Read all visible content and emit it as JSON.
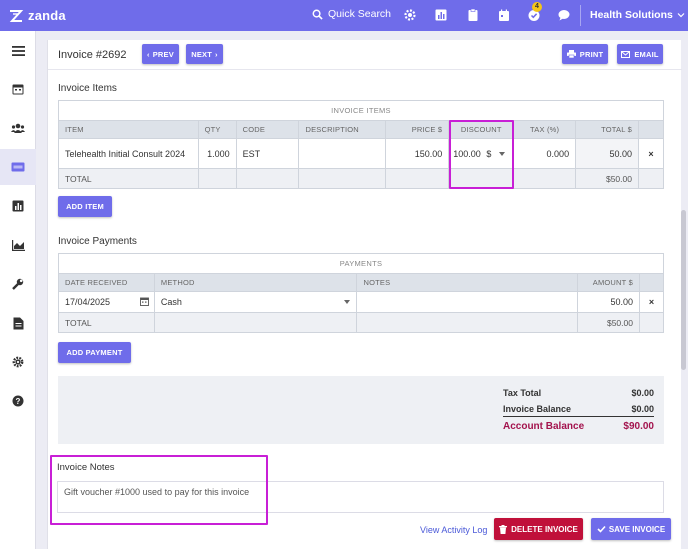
{
  "topbar": {
    "logo_text": "zanda",
    "search_label": "Quick Search",
    "notification_count": "4",
    "organization": "Health Solutions",
    "icons": [
      "gear-icon",
      "chart-icon",
      "clipboard-icon",
      "calendar-icon",
      "check-badge-icon",
      "chat-icon"
    ]
  },
  "sidebar": {
    "icons": [
      "menu-icon",
      "calendar-icon",
      "users-icon",
      "invoice-icon",
      "report-icon",
      "analytics-icon",
      "wrench-icon",
      "document-icon",
      "settings-icon",
      "help-icon"
    ],
    "active": "invoice-icon"
  },
  "header": {
    "title": "Invoice #2692",
    "prev_label": "PREV",
    "next_label": "NEXT",
    "print_label": "PRINT",
    "email_label": "EMAIL"
  },
  "items": {
    "section_title": "Invoice Items",
    "caption": "INVOICE ITEMS",
    "columns": [
      "ITEM",
      "QTY",
      "CODE",
      "DESCRIPTION",
      "PRICE $",
      "DISCOUNT",
      "TAX (%)",
      "TOTAL $"
    ],
    "rows": [
      {
        "item": "Telehealth Initial Consult 2024",
        "qty": "1.000",
        "code": "EST",
        "description": "",
        "price": "150.00",
        "discount": "100.00",
        "discount_unit": "$",
        "tax": "0.000",
        "total": "50.00"
      }
    ],
    "total_label": "TOTAL",
    "total_value": "$50.00",
    "add_label": "ADD ITEM"
  },
  "payments": {
    "section_title": "Invoice Payments",
    "caption": "PAYMENTS",
    "columns": [
      "DATE RECEIVED",
      "METHOD",
      "NOTES",
      "AMOUNT $"
    ],
    "rows": [
      {
        "date": "17/04/2025",
        "method": "Cash",
        "notes": "",
        "amount": "50.00"
      }
    ],
    "total_label": "TOTAL",
    "total_value": "$50.00",
    "add_label": "ADD PAYMENT"
  },
  "summary": {
    "tax_total_label": "Tax Total",
    "tax_total_value": "$0.00",
    "invoice_balance_label": "Invoice Balance",
    "invoice_balance_value": "$0.00",
    "account_balance_label": "Account Balance",
    "account_balance_value": "$90.00",
    "account_balance_color": "#a3134d"
  },
  "notes": {
    "label": "Invoice Notes",
    "value": "Gift voucher #1000 used to pay for this invoice"
  },
  "footer": {
    "activity_link": "View Activity Log",
    "delete_label": "DELETE INVOICE",
    "save_label": "SAVE INVOICE"
  },
  "colors": {
    "brand": "#6f6cea",
    "delete": "#c0103a",
    "highlight": "#c81fd6"
  }
}
